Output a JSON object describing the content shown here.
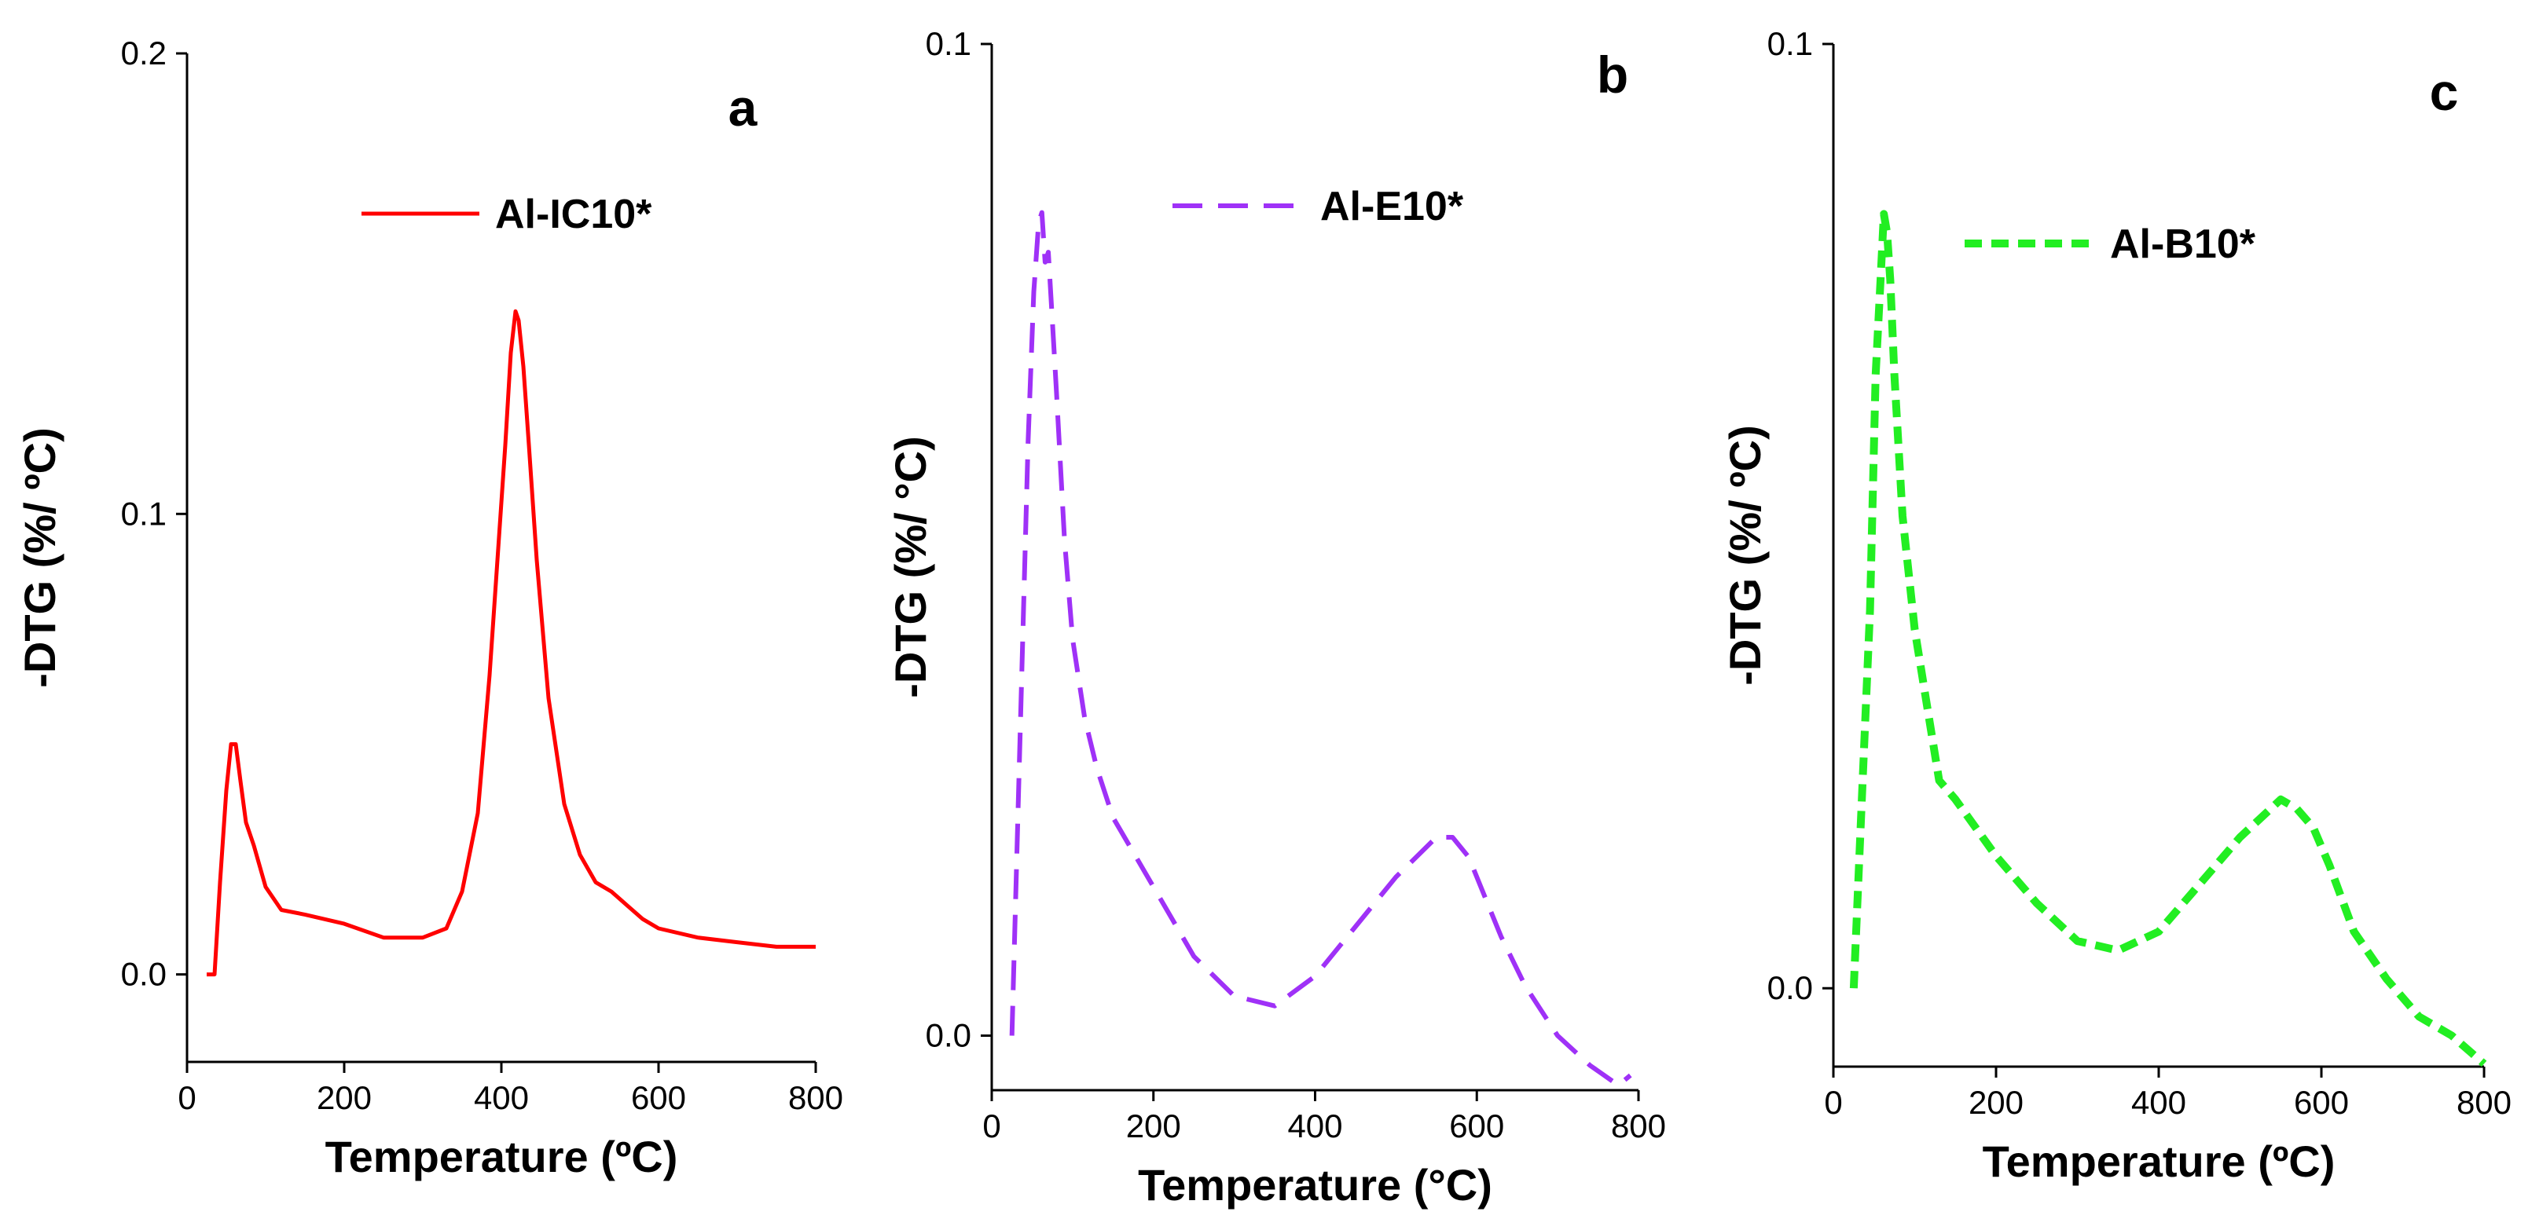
{
  "chart_data": [
    {
      "type": "line",
      "panel_label": "a",
      "xlabel": "Temperature (ºC)",
      "ylabel": "-DTG (%/ ºC)",
      "xlim": [
        0,
        800
      ],
      "ylim": [
        -0.019,
        0.2
      ],
      "x_ticks": [
        "0",
        "200",
        "400",
        "600",
        "800"
      ],
      "y_ticks": [
        {
          "value": 0.0,
          "label": "0.0"
        },
        {
          "value": 0.1,
          "label": "0.1"
        },
        {
          "value": 0.2,
          "label": "0.2"
        }
      ],
      "legend_position": "top-right",
      "series": [
        {
          "name": "Al-IC10*",
          "color": "#ff0000",
          "style": "solid",
          "x": [
            25,
            35,
            42,
            50,
            56,
            62,
            68,
            75,
            85,
            100,
            120,
            150,
            200,
            250,
            300,
            330,
            350,
            370,
            385,
            395,
            405,
            412,
            418,
            422,
            428,
            435,
            445,
            460,
            480,
            500,
            520,
            540,
            560,
            580,
            600,
            650,
            700,
            750,
            800
          ],
          "y": [
            0.0,
            0.0,
            0.02,
            0.04,
            0.05,
            0.05,
            0.042,
            0.033,
            0.028,
            0.019,
            0.014,
            0.013,
            0.011,
            0.008,
            0.008,
            0.01,
            0.018,
            0.035,
            0.065,
            0.09,
            0.115,
            0.135,
            0.144,
            0.142,
            0.132,
            0.115,
            0.09,
            0.06,
            0.037,
            0.026,
            0.02,
            0.018,
            0.015,
            0.012,
            0.01,
            0.008,
            0.007,
            0.006,
            0.006
          ]
        }
      ]
    },
    {
      "type": "line",
      "panel_label": "b",
      "xlabel": "Temperature (°C)",
      "ylabel": "-DTG (%/ °C)",
      "xlim": [
        0,
        800
      ],
      "ylim": [
        -0.0055,
        0.1
      ],
      "x_ticks": [
        "0",
        "200",
        "400",
        "600",
        "800"
      ],
      "y_ticks": [
        {
          "value": 0.0,
          "label": "0.0"
        },
        {
          "value": 0.1,
          "label": "0.1"
        }
      ],
      "legend_position": "top-right",
      "series": [
        {
          "name": "Al-E10*",
          "color": "#9f31f7",
          "style": "dashed",
          "x": [
            25,
            35,
            45,
            52,
            58,
            62,
            66,
            70,
            75,
            80,
            90,
            100,
            115,
            130,
            150,
            200,
            250,
            300,
            350,
            400,
            450,
            500,
            550,
            570,
            590,
            610,
            630,
            660,
            700,
            740,
            775,
            790
          ],
          "y": [
            0.0,
            0.03,
            0.06,
            0.075,
            0.082,
            0.083,
            0.078,
            0.079,
            0.072,
            0.065,
            0.05,
            0.04,
            0.032,
            0.027,
            0.022,
            0.015,
            0.008,
            0.004,
            0.003,
            0.006,
            0.011,
            0.016,
            0.02,
            0.02,
            0.018,
            0.014,
            0.01,
            0.005,
            0.0,
            -0.003,
            -0.005,
            -0.004
          ]
        }
      ]
    },
    {
      "type": "line",
      "panel_label": "c",
      "xlabel": "Temperature (ºC)",
      "ylabel": "-DTG (%/ ºC)",
      "xlim": [
        0,
        800
      ],
      "ylim": [
        -0.0083,
        0.1
      ],
      "x_ticks": [
        "0",
        "200",
        "400",
        "600",
        "800"
      ],
      "y_ticks": [
        {
          "value": 0.0,
          "label": "0.0"
        },
        {
          "value": 0.1,
          "label": "0.1"
        }
      ],
      "legend_position": "top-right",
      "series": [
        {
          "name": "Al-B10*",
          "color": "#22ee22",
          "style": "dashed",
          "x": [
            25,
            35,
            45,
            52,
            58,
            62,
            66,
            70,
            75,
            85,
            100,
            115,
            130,
            150,
            200,
            250,
            300,
            350,
            400,
            450,
            500,
            550,
            570,
            590,
            610,
            640,
            680,
            720,
            760,
            800
          ],
          "y": [
            0.0,
            0.02,
            0.04,
            0.065,
            0.075,
            0.082,
            0.08,
            0.075,
            0.065,
            0.05,
            0.038,
            0.03,
            0.022,
            0.02,
            0.014,
            0.009,
            0.005,
            0.004,
            0.006,
            0.011,
            0.016,
            0.02,
            0.019,
            0.017,
            0.013,
            0.006,
            0.001,
            -0.003,
            -0.005,
            -0.008
          ]
        }
      ]
    }
  ]
}
